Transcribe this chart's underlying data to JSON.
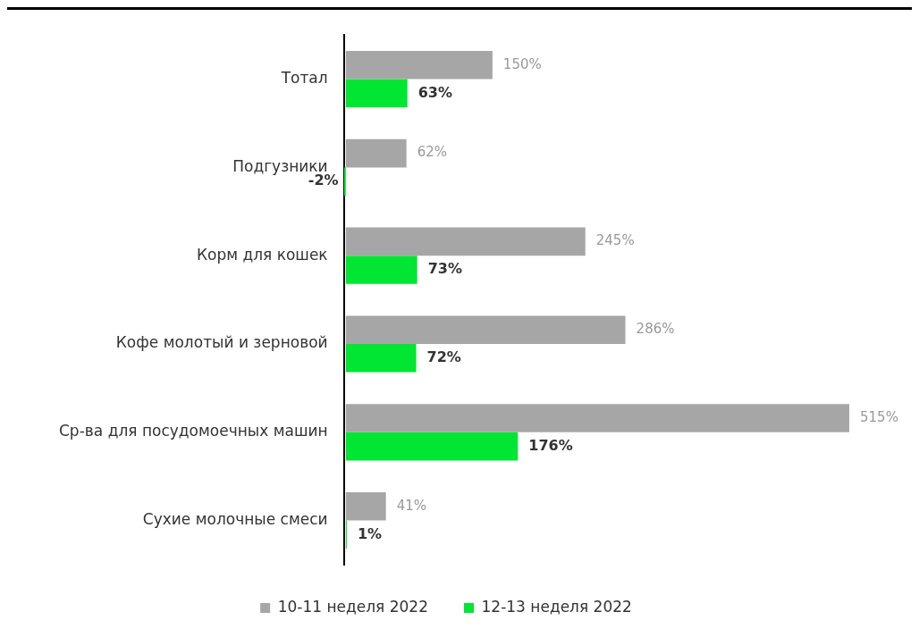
{
  "chart_data": {
    "type": "bar",
    "orientation": "horizontal",
    "categories": [
      "Тотал",
      "Подгузники",
      "Корм для кошек",
      "Кофе молотый и зерновой",
      "Ср-ва для посудомоечных машин",
      "Сухие молочные смеси"
    ],
    "series": [
      {
        "name": "10-11 неделя 2022",
        "color": "#a6a6a6",
        "values": [
          150,
          62,
          245,
          286,
          515,
          41
        ],
        "value_labels": [
          "150%",
          "62%",
          "245%",
          "286%",
          "515%",
          "41%"
        ]
      },
      {
        "name": "12-13 неделя 2022",
        "color": "#00e632",
        "values": [
          63,
          -2,
          73,
          72,
          176,
          1
        ],
        "value_labels": [
          "63%",
          "-2%",
          "73%",
          "72%",
          "176%",
          "1%"
        ]
      }
    ],
    "legend": "bottom"
  }
}
